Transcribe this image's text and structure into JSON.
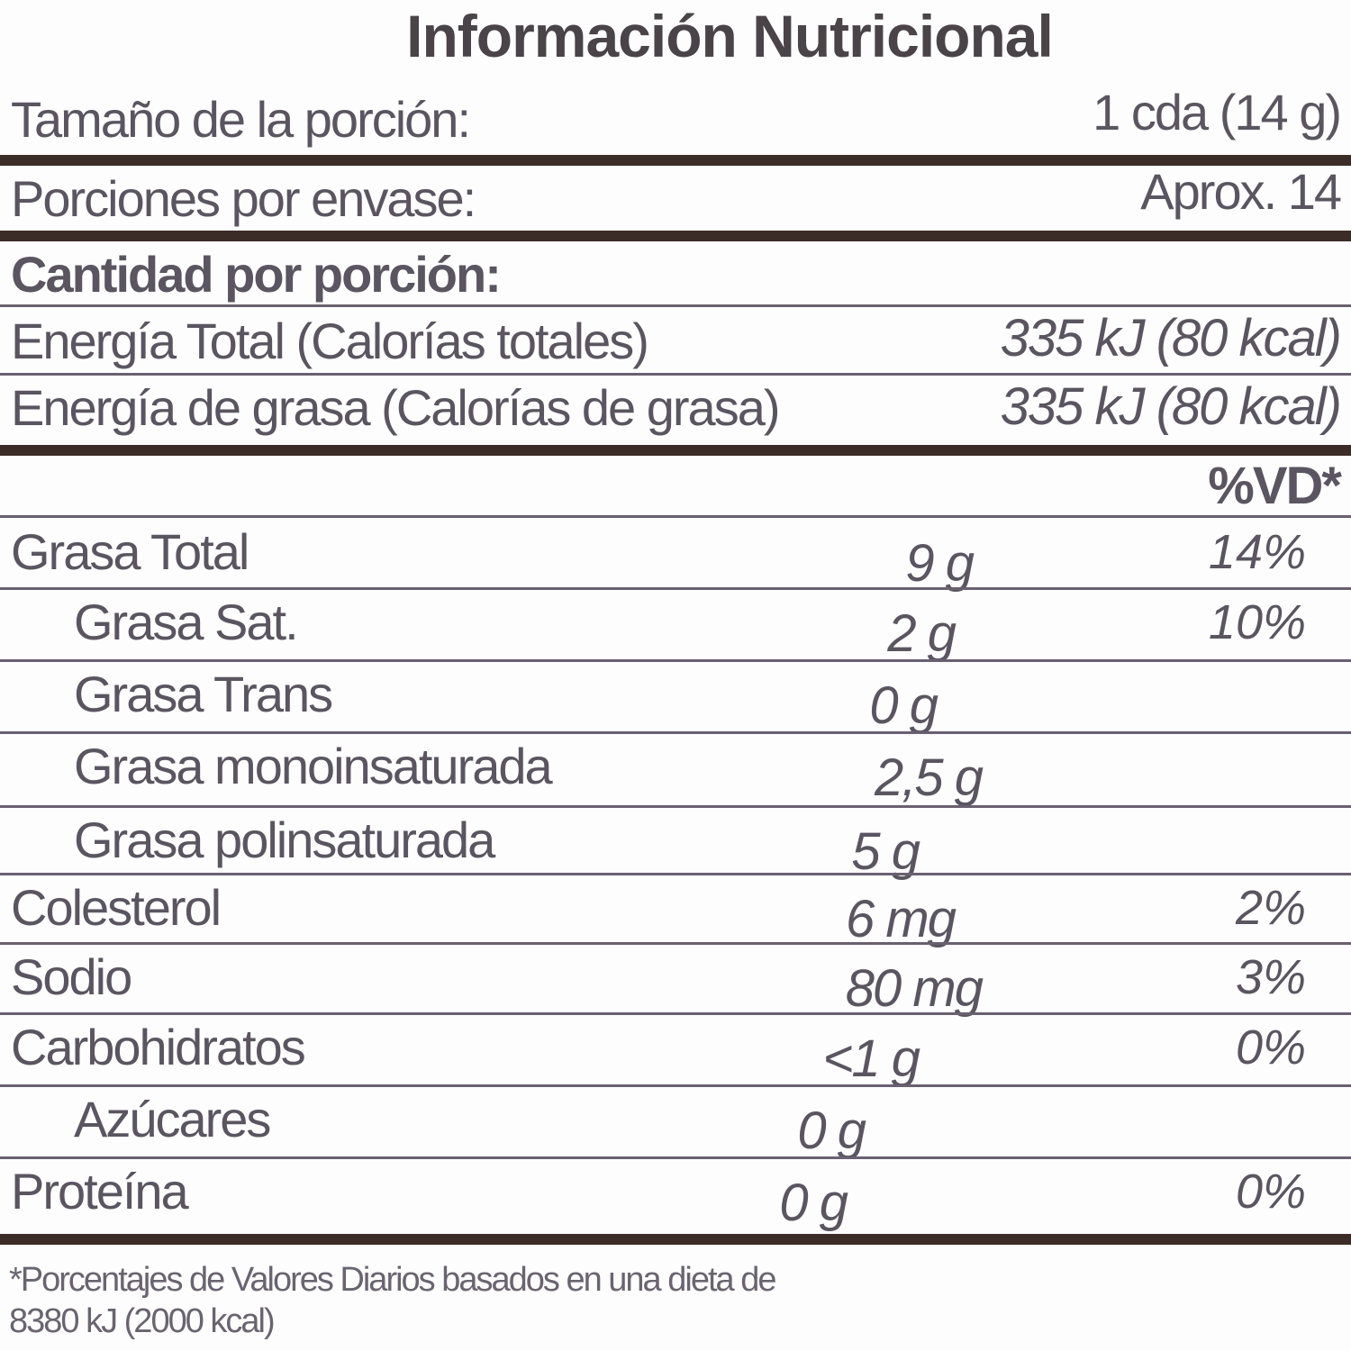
{
  "title": "Información Nutricional",
  "serving": {
    "label": "Tamaño de la porción:",
    "value": "1 cda (14 g)"
  },
  "servings_per_container": {
    "label": "Porciones por envase:",
    "value": "Aprox. 14"
  },
  "amount_per_serving": "Cantidad por porción:",
  "energy_total": {
    "label": "Energía Total (Calorías totales)",
    "value": "335 kJ (80 kcal)"
  },
  "energy_fat": {
    "label": "Energía de grasa (Calorías de grasa)",
    "value": "335 kJ (80 kcal)"
  },
  "dv_header": "%VD*",
  "nutrients": [
    {
      "label": "Grasa Total",
      "amount": "9 g",
      "dv": "14%"
    },
    {
      "label": "Grasa Sat.",
      "amount": "2 g",
      "dv": "10%"
    },
    {
      "label": "Grasa Trans",
      "amount": "0 g",
      "dv": ""
    },
    {
      "label": "Grasa monoinsaturada",
      "amount": "2,5 g",
      "dv": ""
    },
    {
      "label": "Grasa polinsaturada",
      "amount": "5 g",
      "dv": ""
    },
    {
      "label": "Colesterol",
      "amount": "6 mg",
      "dv": "2%"
    },
    {
      "label": "Sodio",
      "amount": "80 mg",
      "dv": "3%"
    },
    {
      "label": "Carbohidratos",
      "amount": "<1 g",
      "dv": "0%"
    },
    {
      "label": "Azúcares",
      "amount": "0 g",
      "dv": ""
    },
    {
      "label": "Proteína",
      "amount": "0 g",
      "dv": "0%"
    }
  ],
  "footnote": {
    "line1": "*Porcentajes de Valores Diarios basados en una dieta de",
    "line2": "8380 kJ (2000 kcal)"
  }
}
